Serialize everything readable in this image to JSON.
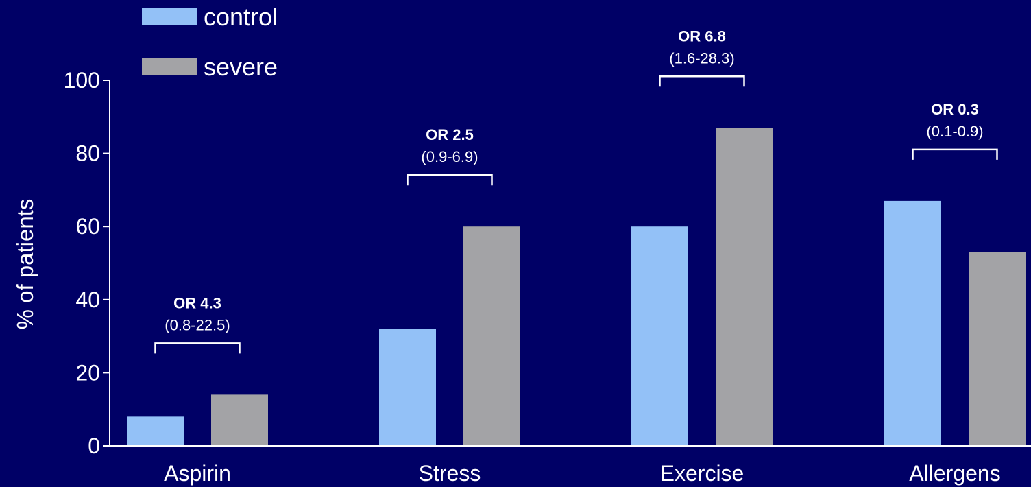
{
  "chart_data": {
    "type": "bar",
    "categories": [
      "Aspirin",
      "Stress",
      "Exercise",
      "Allergens"
    ],
    "series": [
      {
        "name": "control",
        "color": "#93c1f7",
        "values": [
          8,
          32,
          60,
          67
        ]
      },
      {
        "name": "severe",
        "color": "#a3a3a6",
        "values": [
          14,
          60,
          87,
          53
        ]
      }
    ],
    "ylabel": "% of patients",
    "xlabel": "",
    "ylim": [
      0,
      100
    ],
    "yticks": [
      0,
      20,
      40,
      60,
      80,
      100
    ],
    "legend_position": "top-left",
    "grid": false,
    "annotations": [
      {
        "category": "Aspirin",
        "title": "OR 4.3",
        "ci": "(0.8-22.5)"
      },
      {
        "category": "Stress",
        "title": "OR 2.5",
        "ci": "(0.9-6.9)"
      },
      {
        "category": "Exercise",
        "title": "OR 6.8",
        "ci": "(1.6-28.3)"
      },
      {
        "category": "Allergens",
        "title": "OR 0.3",
        "ci": "(0.1-0.9)"
      }
    ]
  }
}
